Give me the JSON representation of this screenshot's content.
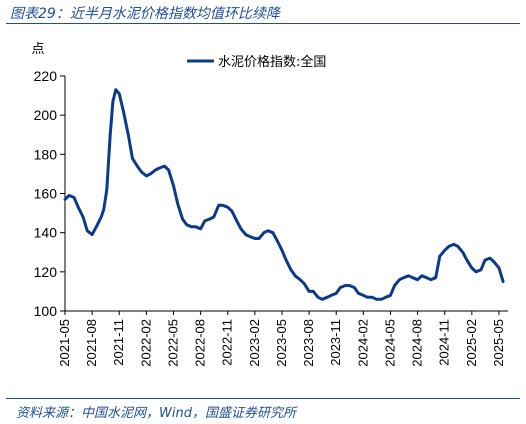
{
  "header": {
    "title": "图表29：近半月水泥价格指数均值环比续降"
  },
  "footer": {
    "source": "资料来源：中国水泥网，Wind，国盛证券研究所"
  },
  "chart_data": {
    "type": "line",
    "title": "图表29：近半月水泥价格指数均值环比续降",
    "ylabel": "点",
    "xlabel": "",
    "ylim": [
      100,
      220
    ],
    "yticks": [
      100,
      120,
      140,
      160,
      180,
      200,
      220
    ],
    "xlim": [
      "2021-05",
      "2025-06"
    ],
    "xticks": [
      "2021-05",
      "2021-08",
      "2021-11",
      "2022-02",
      "2022-05",
      "2022-08",
      "2022-11",
      "2023-02",
      "2023-05",
      "2023-08",
      "2023-11",
      "2024-02",
      "2024-05",
      "2024-08",
      "2024-11",
      "2025-02",
      "2025-05"
    ],
    "legend_position": "top-center",
    "grid": false,
    "series": [
      {
        "name": "水泥价格指数:全国",
        "color": "#0b3a8c",
        "x": [
          "2021-05-01",
          "2021-05-15",
          "2021-06-01",
          "2021-06-15",
          "2021-07-01",
          "2021-07-15",
          "2021-08-01",
          "2021-08-15",
          "2021-09-01",
          "2021-09-10",
          "2021-09-20",
          "2021-10-01",
          "2021-10-10",
          "2021-10-20",
          "2021-11-01",
          "2021-11-15",
          "2021-12-01",
          "2021-12-15",
          "2022-01-01",
          "2022-01-15",
          "2022-02-01",
          "2022-02-15",
          "2022-03-01",
          "2022-03-15",
          "2022-04-01",
          "2022-04-15",
          "2022-05-01",
          "2022-05-15",
          "2022-06-01",
          "2022-06-15",
          "2022-07-01",
          "2022-07-15",
          "2022-08-01",
          "2022-08-15",
          "2022-09-01",
          "2022-09-15",
          "2022-10-01",
          "2022-10-15",
          "2022-11-01",
          "2022-11-15",
          "2022-12-01",
          "2022-12-15",
          "2023-01-01",
          "2023-01-15",
          "2023-02-01",
          "2023-02-15",
          "2023-03-01",
          "2023-03-15",
          "2023-04-01",
          "2023-04-15",
          "2023-05-01",
          "2023-05-15",
          "2023-06-01",
          "2023-06-15",
          "2023-07-01",
          "2023-07-15",
          "2023-08-01",
          "2023-08-15",
          "2023-09-01",
          "2023-09-15",
          "2023-10-01",
          "2023-10-15",
          "2023-11-01",
          "2023-11-15",
          "2023-12-01",
          "2023-12-15",
          "2024-01-01",
          "2024-01-15",
          "2024-02-01",
          "2024-02-15",
          "2024-03-01",
          "2024-03-15",
          "2024-04-01",
          "2024-04-15",
          "2024-05-01",
          "2024-05-15",
          "2024-06-01",
          "2024-06-15",
          "2024-07-01",
          "2024-07-15",
          "2024-08-01",
          "2024-08-15",
          "2024-09-01",
          "2024-09-15",
          "2024-10-01",
          "2024-10-15",
          "2024-11-01",
          "2024-11-15",
          "2024-12-01",
          "2024-12-15",
          "2025-01-01",
          "2025-01-15",
          "2025-02-01",
          "2025-02-15",
          "2025-03-01",
          "2025-03-15",
          "2025-04-01",
          "2025-04-15",
          "2025-05-01",
          "2025-05-15"
        ],
        "values": [
          157,
          159,
          158,
          153,
          148,
          141,
          139,
          143,
          148,
          152,
          162,
          190,
          207,
          213,
          211,
          202,
          190,
          178,
          174,
          171,
          169,
          170,
          172,
          173,
          174,
          172,
          164,
          155,
          147,
          144,
          143,
          143,
          142,
          146,
          147,
          148,
          154,
          154,
          153,
          151,
          146,
          142,
          139,
          138,
          137,
          137,
          140,
          141,
          140,
          136,
          131,
          126,
          121,
          118,
          116,
          114,
          110,
          110,
          107,
          106,
          107,
          108,
          109,
          112,
          113,
          113,
          112,
          109,
          108,
          107,
          107,
          106,
          106,
          107,
          108,
          113,
          116,
          117,
          118,
          117,
          116,
          118,
          117,
          116,
          117,
          128,
          131,
          133,
          134,
          133,
          130,
          126,
          122,
          120,
          121,
          126,
          127,
          125,
          122,
          115
        ]
      }
    ]
  }
}
